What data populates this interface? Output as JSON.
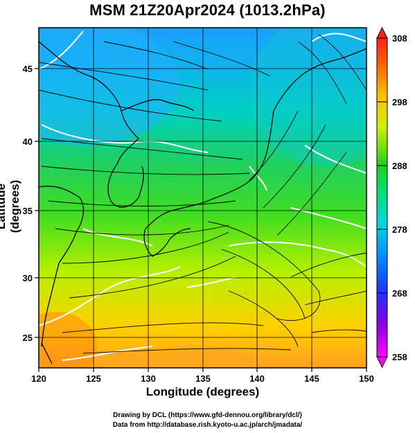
{
  "title": "MSM 21Z20Apr2024 (1013.2hPa)",
  "x_axis": {
    "label": "Longitude (degrees)",
    "ticks": [
      "120",
      "125",
      "130",
      "135",
      "140",
      "145",
      "150"
    ],
    "range": [
      120,
      150
    ]
  },
  "y_axis": {
    "label": "Latitude  (degrees)",
    "ticks": [
      "25",
      "30",
      "35",
      "40",
      "45"
    ],
    "range": [
      22.5,
      47.5
    ]
  },
  "colorbar": {
    "labels": [
      "308",
      "298",
      "288",
      "278",
      "268",
      "258"
    ],
    "range": [
      258,
      308
    ],
    "colors": [
      "#ff00ff",
      "#8000ff",
      "#2040ff",
      "#00c8ff",
      "#00e0a0",
      "#20d020",
      "#d0f000",
      "#ffc000",
      "#ff6000",
      "#ff2020"
    ]
  },
  "colors": {
    "land_line": "#000000",
    "contour": "#ffffff",
    "grid": "#000000"
  },
  "credits": {
    "line1": "Drawing by DCL (https://www.gfd-dennou.org/library/dcl/)",
    "line2": "Data from http://database.rish.kyoto-u.ac.jp/arch/jmadata/"
  }
}
